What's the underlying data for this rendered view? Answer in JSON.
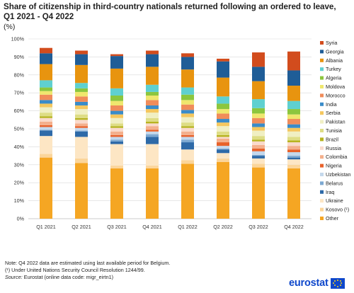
{
  "title": "Share of citizenship in third-country nationals returned following an ordered to leave, Q1 2021 - Q4 2022",
  "unit": "(%)",
  "notes": {
    "line1": "Note: Q4 2022 data are estimated using last available period for Belgium.",
    "line2": "(¹) Under United Nations Security Council Resolution 1244/99.",
    "source_label": "Source:",
    "source_text": " Eurostat (online data code: migr_eirtn1)"
  },
  "logo": {
    "text": "eurostat"
  },
  "chart_data": {
    "type": "bar",
    "stacked": true,
    "categories": [
      "Q1 2021",
      "Q2 2021",
      "Q3 2021",
      "Q4 2021",
      "Q1 2022",
      "Q2 2022",
      "Q3 2022",
      "Q4 2022"
    ],
    "ylim": [
      0,
      100
    ],
    "yticks": [
      0,
      10,
      20,
      30,
      40,
      50,
      60,
      70,
      80,
      90,
      100
    ],
    "ytick_suffix": "%",
    "grid": true,
    "legend_position": "right",
    "series": [
      {
        "name": "Other",
        "color": "#f5a623",
        "values": [
          34,
          31,
          28,
          28,
          30.5,
          31.5,
          28.5,
          28
        ]
      },
      {
        "name": "Kosovo (¹)",
        "color": "#fbd59a",
        "values": [
          2,
          2.5,
          1.5,
          1.5,
          2,
          2,
          2,
          2
        ]
      },
      {
        "name": "Ukraine",
        "color": "#fde6c4",
        "values": [
          10,
          12,
          12,
          12,
          6,
          3,
          3,
          3
        ]
      },
      {
        "name": "Iraq",
        "color": "#2e6aa8",
        "values": [
          3,
          3,
          1.5,
          4,
          4,
          2,
          1.5,
          1
        ]
      },
      {
        "name": "Belarus",
        "color": "#7da9d2",
        "values": [
          0.5,
          0.5,
          1,
          1.5,
          1.5,
          0.5,
          0.5,
          1
        ]
      },
      {
        "name": "Uzbekistan",
        "color": "#c4d8ec",
        "values": [
          1.5,
          1.5,
          1.5,
          1.5,
          1.5,
          1.5,
          2,
          2
        ]
      },
      {
        "name": "Nigeria",
        "color": "#e8622b",
        "values": [
          1,
          1,
          1,
          1,
          1,
          2,
          1.5,
          1.5
        ]
      },
      {
        "name": "Colombia",
        "color": "#f4b08d",
        "values": [
          2,
          1.5,
          2,
          2,
          2,
          2,
          2,
          2
        ]
      },
      {
        "name": "Russia",
        "color": "#fadacb",
        "values": [
          2,
          2,
          2,
          1.5,
          2,
          1,
          2,
          2
        ]
      },
      {
        "name": "Brazil",
        "color": "#b7b421",
        "values": [
          1,
          1,
          1,
          1,
          1,
          1,
          1,
          1
        ]
      },
      {
        "name": "Tunisia",
        "color": "#dedd85",
        "values": [
          2,
          2,
          1.5,
          2,
          2,
          2,
          2,
          2
        ]
      },
      {
        "name": "Pakistan",
        "color": "#f0efc3",
        "values": [
          3,
          3,
          3,
          3,
          3,
          3,
          3,
          3
        ]
      },
      {
        "name": "Serbia",
        "color": "#f5c75e",
        "values": [
          2,
          2,
          2,
          2,
          2,
          2,
          2,
          2
        ]
      },
      {
        "name": "India",
        "color": "#3a8cc9",
        "values": [
          2,
          2,
          2,
          2,
          2,
          2,
          2,
          2
        ]
      },
      {
        "name": "Morocco",
        "color": "#f08c5a",
        "values": [
          3,
          3,
          3,
          3,
          3,
          3,
          3,
          3
        ]
      },
      {
        "name": "Moldova",
        "color": "#efe76e",
        "values": [
          2,
          2.5,
          2.5,
          2.5,
          2.5,
          2.5,
          2.5,
          2.5
        ]
      },
      {
        "name": "Algeria",
        "color": "#8cc63e",
        "values": [
          2,
          2,
          3,
          2,
          3,
          3,
          3,
          3
        ]
      },
      {
        "name": "Turkey",
        "color": "#5fd0d0",
        "values": [
          4,
          3,
          4,
          4,
          4,
          4,
          5,
          4.5
        ]
      },
      {
        "name": "Albania",
        "color": "#e8940f",
        "values": [
          9,
          10,
          11,
          10,
          10,
          10.5,
          10,
          8.5
        ]
      },
      {
        "name": "Georgia",
        "color": "#1f5d97",
        "values": [
          6,
          6,
          7,
          7,
          7,
          9,
          8,
          8.5
        ]
      },
      {
        "name": "Syria",
        "color": "#d24c1d",
        "values": [
          3,
          2,
          1,
          2,
          2,
          1.5,
          8,
          10.5
        ]
      }
    ]
  }
}
